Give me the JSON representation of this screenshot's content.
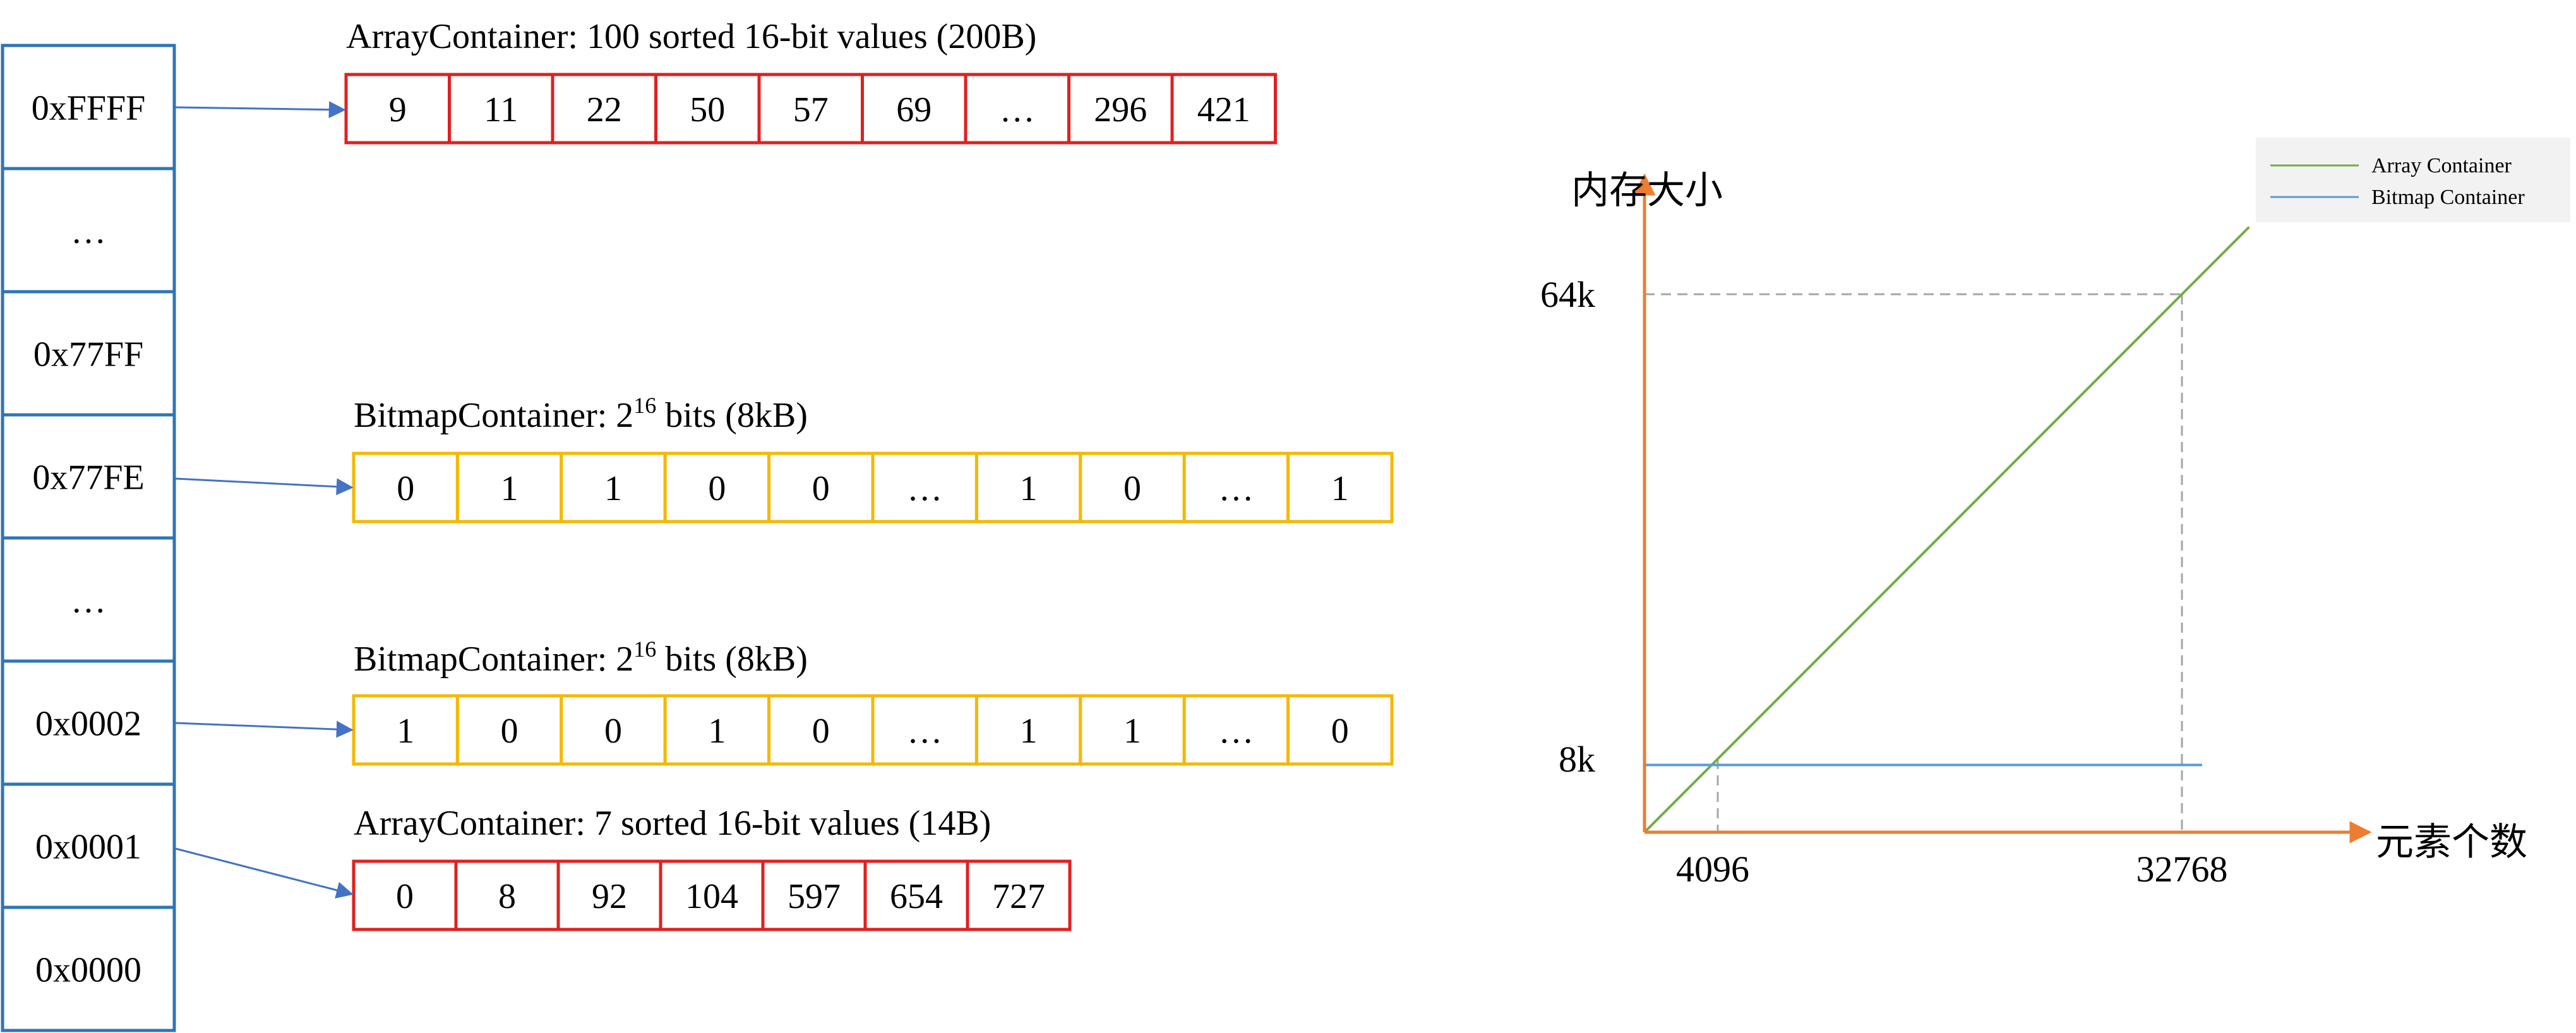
{
  "key_column": {
    "items": [
      "0xFFFF",
      "…",
      "0x77FF",
      "0x77FE",
      "…",
      "0x0002",
      "0x0001",
      "0x0000"
    ]
  },
  "containers": [
    {
      "label": "ArrayContainer: 100 sorted 16-bit values (200B)",
      "type": "array",
      "key": "0xFFFF",
      "cells": [
        "9",
        "11",
        "22",
        "50",
        "57",
        "69",
        "…",
        "296",
        "421"
      ]
    },
    {
      "label_prefix": "BitmapContainer: 2",
      "label_exp": "16",
      "label_suffix": " bits (8kB)",
      "type": "bitmap",
      "key": "0x77FE",
      "cells": [
        "0",
        "1",
        "1",
        "0",
        "0",
        "…",
        "1",
        "0",
        "…",
        "1"
      ]
    },
    {
      "label_prefix": "BitmapContainer: 2",
      "label_exp": "16",
      "label_suffix": " bits (8kB)",
      "type": "bitmap",
      "key": "0x0002",
      "cells": [
        "1",
        "0",
        "0",
        "1",
        "0",
        "…",
        "1",
        "1",
        "…",
        "0"
      ]
    },
    {
      "label": "ArrayContainer: 7 sorted 16-bit values (14B)",
      "type": "array",
      "key": "0x0001",
      "cells": [
        "0",
        "8",
        "92",
        "104",
        "597",
        "654",
        "727"
      ]
    }
  ],
  "colors": {
    "key_box": "#2e75b6",
    "array_box": "#e02020",
    "bitmap_box": "#f5b800",
    "arrow": "#4472c4",
    "axis": "#ed7d31",
    "array_line": "#70ad47",
    "bitmap_line": "#5b9bd5",
    "guide": "#a6a6a6",
    "legend_bg": "#f2f2f2"
  },
  "chart_data": {
    "type": "line",
    "title": "",
    "xlabel": "元素个数",
    "ylabel": "内存大小",
    "x_ticks": [
      "4096",
      "32768"
    ],
    "y_ticks": [
      "64k",
      "8k"
    ],
    "series": [
      {
        "name": "Array Container",
        "x": [
          0,
          4096,
          32768,
          36864
        ],
        "y": [
          0,
          8,
          64,
          72
        ]
      },
      {
        "name": "Bitmap Container",
        "x": [
          0,
          34000
        ],
        "y": [
          8,
          8
        ]
      }
    ],
    "legend_position": "top-right",
    "grid": false
  }
}
